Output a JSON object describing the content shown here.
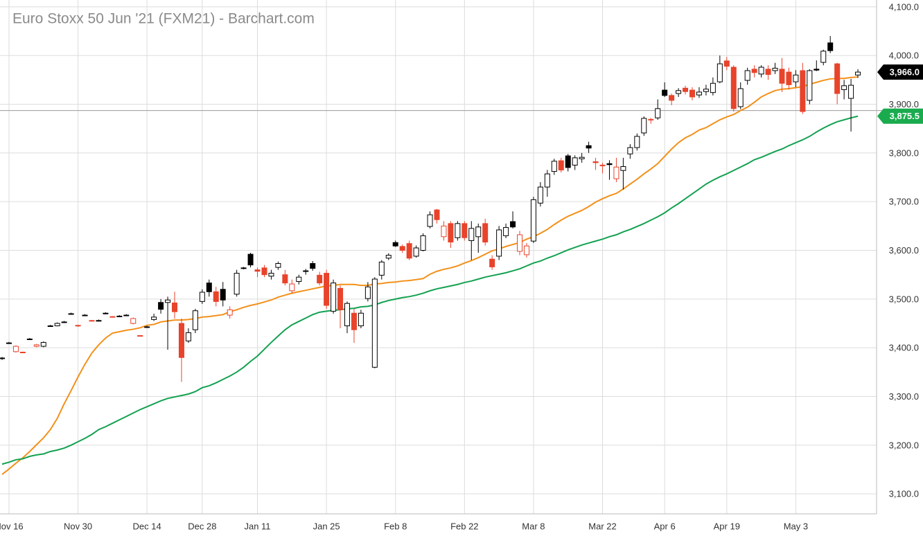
{
  "chart_data": {
    "type": "candlestick",
    "title": "Euro Stoxx 50 Jun '21 (FXM21) - Barchart.com",
    "up_color": "#000000",
    "down_color": "#e8432b",
    "ylim": [
      3059,
      4114
    ],
    "yticks": [
      {
        "value": 3100,
        "label": "3,100.0"
      },
      {
        "value": 3200,
        "label": "3,200.0"
      },
      {
        "value": 3300,
        "label": "3,300.0"
      },
      {
        "value": 3400,
        "label": "3,400.0"
      },
      {
        "value": 3500,
        "label": "3,500.0"
      },
      {
        "value": 3600,
        "label": "3,600.0"
      },
      {
        "value": 3700,
        "label": "3,700.0"
      },
      {
        "value": 3800,
        "label": "3,800.0"
      },
      {
        "value": 3900,
        "label": "3,900.0"
      },
      {
        "value": 4000,
        "label": "4,000.0"
      },
      {
        "value": 4100,
        "label": "4,100.0"
      }
    ],
    "grid": true,
    "categories": [
      null,
      "Nov 16",
      null,
      null,
      null,
      null,
      null,
      null,
      null,
      null,
      null,
      "Nov 30",
      null,
      null,
      null,
      null,
      null,
      null,
      null,
      null,
      null,
      "Dec 14",
      null,
      null,
      null,
      null,
      null,
      null,
      null,
      "Dec 28",
      null,
      null,
      null,
      null,
      null,
      null,
      null,
      "Jan 11",
      null,
      null,
      null,
      null,
      null,
      null,
      null,
      null,
      null,
      "Jan 25",
      null,
      null,
      null,
      null,
      null,
      null,
      null,
      null,
      null,
      "Feb 8",
      null,
      null,
      null,
      null,
      null,
      null,
      null,
      null,
      null,
      "Feb 22",
      null,
      null,
      null,
      null,
      null,
      null,
      null,
      null,
      null,
      "Mar 8",
      null,
      null,
      null,
      null,
      null,
      null,
      null,
      null,
      null,
      "Mar 22",
      null,
      null,
      null,
      null,
      null,
      null,
      null,
      null,
      "Apr 6",
      null,
      null,
      null,
      null,
      null,
      null,
      null,
      null,
      "Apr 19",
      null,
      null,
      null,
      null,
      null,
      null,
      null,
      null,
      null,
      "May 3",
      null,
      null,
      null,
      null,
      null,
      null,
      null,
      null,
      null
    ],
    "ohlc": [
      [
        3378,
        3381,
        3375,
        3379
      ],
      [
        3409,
        3412,
        3408,
        3410
      ],
      [
        3392,
        3405,
        3390,
        3403
      ],
      [
        3391,
        3392,
        3389,
        3390
      ],
      [
        3417,
        3420,
        3416,
        3418
      ],
      [
        3403,
        3408,
        3401,
        3406
      ],
      [
        3403,
        3413,
        3401,
        3411
      ],
      [
        3444,
        3447,
        3443,
        3445
      ],
      [
        3445,
        3452,
        3444,
        3450
      ],
      [
        3452,
        3455,
        3451,
        3453
      ],
      [
        3469,
        3472,
        3468,
        3470
      ],
      [
        3446,
        3447,
        3443,
        3445
      ],
      [
        3466,
        3469,
        3465,
        3467
      ],
      [
        3456,
        3457,
        3454,
        3455
      ],
      [
        3455,
        3458,
        3454,
        3456
      ],
      [
        3470,
        3473,
        3469,
        3471
      ],
      [
        3464,
        3465,
        3462,
        3463
      ],
      [
        3464,
        3467,
        3463,
        3465
      ],
      [
        3466,
        3469,
        3465,
        3467
      ],
      [
        3450,
        3462,
        3448,
        3460
      ],
      [
        3425,
        3426,
        3423,
        3424
      ],
      [
        3442,
        3445,
        3441,
        3443
      ],
      [
        3458,
        3470,
        3455,
        3463
      ],
      [
        3493,
        3500,
        3470,
        3479
      ],
      [
        3493,
        3505,
        3396,
        3498
      ],
      [
        3492,
        3515,
        3460,
        3474
      ],
      [
        3450,
        3460,
        3330,
        3380
      ],
      [
        3414,
        3440,
        3410,
        3431
      ],
      [
        3437,
        3480,
        3430,
        3476
      ],
      [
        3495,
        3520,
        3490,
        3514
      ],
      [
        3533,
        3540,
        3505,
        3515
      ],
      [
        3515,
        3525,
        3485,
        3495
      ],
      [
        3520,
        3535,
        3485,
        3498
      ],
      [
        3467,
        3485,
        3460,
        3478
      ],
      [
        3510,
        3560,
        3505,
        3553
      ],
      [
        3563,
        3566,
        3561,
        3564
      ],
      [
        3592,
        3595,
        3565,
        3570
      ],
      [
        3560,
        3565,
        3545,
        3557
      ],
      [
        3564,
        3570,
        3545,
        3550
      ],
      [
        3547,
        3560,
        3540,
        3553
      ],
      [
        3565,
        3577,
        3560,
        3573
      ],
      [
        3550,
        3560,
        3528,
        3533
      ],
      [
        3517,
        3540,
        3512,
        3531
      ],
      [
        3536,
        3550,
        3530,
        3545
      ],
      [
        3557,
        3562,
        3550,
        3558
      ],
      [
        3573,
        3578,
        3558,
        3563
      ],
      [
        3549,
        3556,
        3528,
        3533
      ],
      [
        3553,
        3560,
        3480,
        3487
      ],
      [
        3475,
        3540,
        3470,
        3533
      ],
      [
        3522,
        3528,
        3440,
        3478
      ],
      [
        3445,
        3495,
        3430,
        3491
      ],
      [
        3471,
        3480,
        3410,
        3437
      ],
      [
        3445,
        3478,
        3440,
        3471
      ],
      [
        3501,
        3535,
        3495,
        3525
      ],
      [
        3360,
        3545,
        3358,
        3541
      ],
      [
        3549,
        3580,
        3540,
        3576
      ],
      [
        3584,
        3594,
        3580,
        3590
      ],
      [
        3616,
        3620,
        3607,
        3609
      ],
      [
        3608,
        3612,
        3595,
        3600
      ],
      [
        3614,
        3620,
        3580,
        3584
      ],
      [
        3588,
        3610,
        3585,
        3605
      ],
      [
        3600,
        3635,
        3598,
        3630
      ],
      [
        3649,
        3680,
        3645,
        3673
      ],
      [
        3683,
        3685,
        3655,
        3663
      ],
      [
        3628,
        3660,
        3620,
        3650
      ],
      [
        3655,
        3660,
        3605,
        3617
      ],
      [
        3626,
        3660,
        3620,
        3655
      ],
      [
        3655,
        3660,
        3620,
        3626
      ],
      [
        3620,
        3660,
        3580,
        3645
      ],
      [
        3628,
        3655,
        3595,
        3648
      ],
      [
        3655,
        3665,
        3610,
        3617
      ],
      [
        3582,
        3590,
        3560,
        3566
      ],
      [
        3588,
        3650,
        3580,
        3642
      ],
      [
        3630,
        3655,
        3625,
        3647
      ],
      [
        3659,
        3680,
        3645,
        3648
      ],
      [
        3598,
        3640,
        3590,
        3632
      ],
      [
        3591,
        3615,
        3585,
        3609
      ],
      [
        3619,
        3710,
        3615,
        3704
      ],
      [
        3697,
        3740,
        3690,
        3730
      ],
      [
        3730,
        3765,
        3710,
        3757
      ],
      [
        3762,
        3788,
        3755,
        3783
      ],
      [
        3784,
        3790,
        3760,
        3765
      ],
      [
        3794,
        3798,
        3762,
        3770
      ],
      [
        3775,
        3795,
        3765,
        3790
      ],
      [
        3788,
        3800,
        3780,
        3791
      ],
      [
        3815,
        3823,
        3800,
        3810
      ],
      [
        3782,
        3790,
        3765,
        3780
      ],
      [
        3775,
        3780,
        3758,
        3774
      ],
      [
        3778,
        3785,
        3745,
        3776
      ],
      [
        3747,
        3790,
        3740,
        3771
      ],
      [
        3764,
        3790,
        3725,
        3772
      ],
      [
        3798,
        3818,
        3788,
        3811
      ],
      [
        3811,
        3840,
        3805,
        3834
      ],
      [
        3841,
        3875,
        3835,
        3871
      ],
      [
        3869,
        3872,
        3860,
        3868
      ],
      [
        3872,
        3910,
        3868,
        3891
      ],
      [
        3929,
        3945,
        3915,
        3918
      ],
      [
        3918,
        3922,
        3898,
        3908
      ],
      [
        3922,
        3933,
        3915,
        3928
      ],
      [
        3933,
        3938,
        3920,
        3926
      ],
      [
        3929,
        3935,
        3908,
        3915
      ],
      [
        3919,
        3935,
        3913,
        3925
      ],
      [
        3926,
        3940,
        3918,
        3931
      ],
      [
        3924,
        3955,
        3918,
        3943
      ],
      [
        3946,
        4000,
        3943,
        3983
      ],
      [
        3989,
        3997,
        3970,
        3978
      ],
      [
        3976,
        3980,
        3885,
        3891
      ],
      [
        3895,
        3945,
        3890,
        3932
      ],
      [
        3949,
        3975,
        3940,
        3969
      ],
      [
        3972,
        3980,
        3955,
        3965
      ],
      [
        3962,
        3980,
        3955,
        3976
      ],
      [
        3972,
        3980,
        3950,
        3961
      ],
      [
        3969,
        3985,
        3962,
        3974
      ],
      [
        3972,
        3995,
        3925,
        3943
      ],
      [
        3966,
        3975,
        3930,
        3940
      ],
      [
        3946,
        3970,
        3935,
        3960
      ],
      [
        3969,
        3985,
        3880,
        3885
      ],
      [
        3908,
        3972,
        3900,
        3969
      ],
      [
        3972,
        3990,
        3968,
        3970
      ],
      [
        3986,
        4012,
        3980,
        4009
      ],
      [
        4026,
        4040,
        4005,
        4010
      ],
      [
        3983,
        3985,
        3900,
        3922
      ],
      [
        3930,
        3950,
        3910,
        3938
      ],
      [
        3912,
        3952,
        3844,
        3939
      ],
      [
        3960,
        3972,
        3954,
        3966
      ]
    ],
    "moving_averages": [
      {
        "color": "#f39019",
        "values": [
          3140,
          3151,
          3163,
          3174,
          3187,
          3201,
          3215,
          3232,
          3255,
          3285,
          3312,
          3340,
          3366,
          3389,
          3406,
          3420,
          3430,
          3433,
          3436,
          3438,
          3441,
          3446,
          3448,
          3453,
          3455,
          3457,
          3457,
          3458,
          3460,
          3463,
          3464,
          3466,
          3468,
          3474,
          3478,
          3483,
          3487,
          3490,
          3494,
          3498,
          3504,
          3508,
          3512,
          3515,
          3518,
          3521,
          3524,
          3527,
          3528,
          3530,
          3530,
          3530,
          3528,
          3528,
          3531,
          3532,
          3534,
          3535,
          3537,
          3538,
          3540,
          3542,
          3551,
          3557,
          3561,
          3564,
          3568,
          3574,
          3579,
          3585,
          3592,
          3599,
          3603,
          3608,
          3612,
          3616,
          3623,
          3628,
          3635,
          3643,
          3653,
          3662,
          3670,
          3676,
          3682,
          3690,
          3699,
          3706,
          3712,
          3717,
          3726,
          3736,
          3746,
          3757,
          3767,
          3778,
          3793,
          3808,
          3821,
          3831,
          3838,
          3847,
          3852,
          3860,
          3868,
          3874,
          3879,
          3887,
          3894,
          3904,
          3915,
          3922,
          3928,
          3931,
          3932,
          3934,
          3936,
          3941,
          3945,
          3949,
          3952,
          3953,
          3953,
          3955,
          3956
        ]
      },
      {
        "color": "#12a150",
        "values": [
          3161,
          3165,
          3170,
          3172,
          3177,
          3180,
          3182,
          3187,
          3190,
          3194,
          3200,
          3207,
          3214,
          3222,
          3232,
          3238,
          3245,
          3252,
          3259,
          3266,
          3273,
          3279,
          3285,
          3291,
          3296,
          3299,
          3302,
          3305,
          3310,
          3318,
          3322,
          3328,
          3335,
          3342,
          3350,
          3360,
          3372,
          3383,
          3397,
          3411,
          3424,
          3437,
          3447,
          3454,
          3461,
          3468,
          3473,
          3475,
          3477,
          3478,
          3480,
          3481,
          3484,
          3485,
          3488,
          3493,
          3497,
          3500,
          3503,
          3505,
          3508,
          3512,
          3517,
          3521,
          3524,
          3527,
          3530,
          3534,
          3537,
          3541,
          3545,
          3548,
          3551,
          3554,
          3558,
          3562,
          3568,
          3574,
          3578,
          3584,
          3589,
          3595,
          3601,
          3606,
          3611,
          3615,
          3619,
          3623,
          3628,
          3632,
          3638,
          3643,
          3649,
          3655,
          3662,
          3669,
          3677,
          3687,
          3696,
          3706,
          3716,
          3726,
          3736,
          3744,
          3751,
          3757,
          3764,
          3771,
          3778,
          3786,
          3791,
          3797,
          3803,
          3808,
          3815,
          3821,
          3827,
          3834,
          3843,
          3851,
          3858,
          3864,
          3868,
          3872,
          3875.5
        ]
      }
    ],
    "reference_line": 3887,
    "price_tags": [
      {
        "value": 3966,
        "label": "3,966.0",
        "color": "#000000"
      },
      {
        "value": 3875.5,
        "label": "3,875.5",
        "color": "#1aab4e"
      }
    ]
  }
}
